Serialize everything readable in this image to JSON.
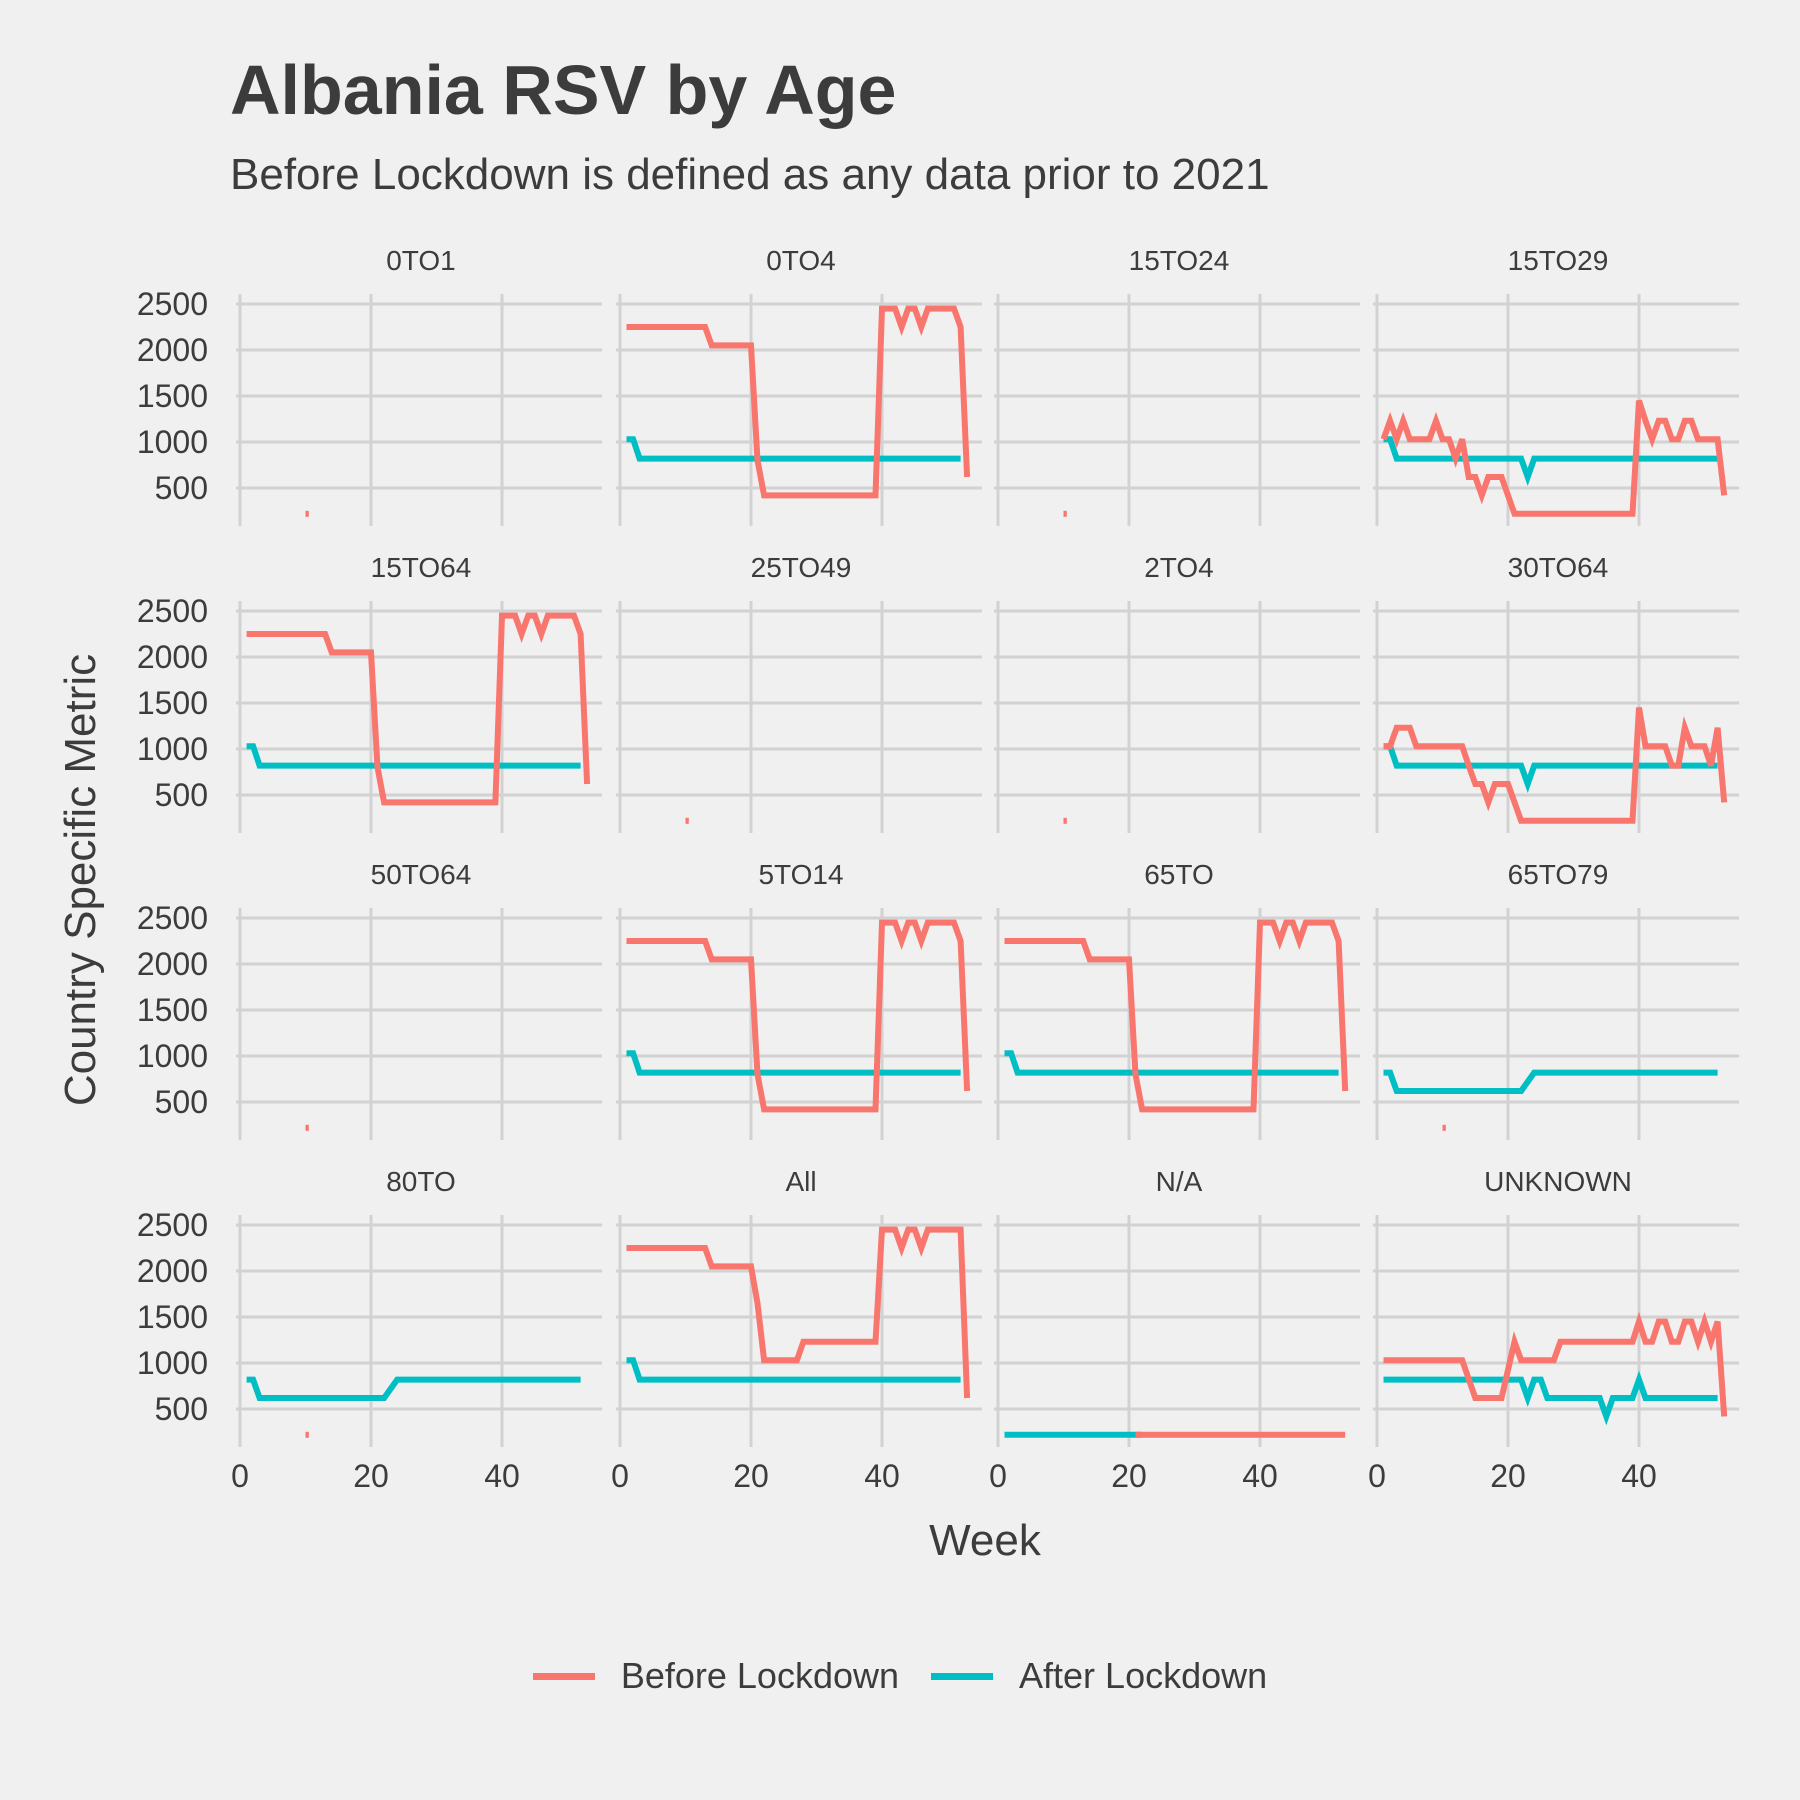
{
  "chart_data": {
    "type": "line",
    "title": "Albania RSV by Age",
    "subtitle": "Before Lockdown is defined as any data prior to 2021",
    "xlabel": "Week",
    "ylabel": "Country Specific Metric",
    "xlim": [
      0,
      54
    ],
    "ylim": [
      200,
      2550
    ],
    "xticks": [
      0,
      20,
      40
    ],
    "yticks": [
      500,
      1000,
      1500,
      2000,
      2500
    ],
    "grid": true,
    "legend_position": "bottom",
    "series_styles": [
      {
        "name": "Before Lockdown",
        "color": "#f8766d"
      },
      {
        "name": "After Lockdown",
        "color": "#00bfc4"
      }
    ],
    "panels": [
      {
        "label": "0TO1",
        "before": [
          [
            10,
            220
          ],
          [
            10.5,
            220
          ]
        ],
        "after": []
      },
      {
        "label": "0TO4",
        "before": [
          [
            1,
            2250
          ],
          [
            13,
            2250
          ],
          [
            14,
            2050
          ],
          [
            20,
            2050
          ],
          [
            21,
            800
          ],
          [
            22,
            420
          ],
          [
            39,
            420
          ],
          [
            40,
            2450
          ],
          [
            42,
            2450
          ],
          [
            43,
            2250
          ],
          [
            44,
            2450
          ],
          [
            45,
            2450
          ],
          [
            46,
            2250
          ],
          [
            47,
            2450
          ],
          [
            51,
            2450
          ],
          [
            52,
            2250
          ],
          [
            53,
            620
          ]
        ],
        "after": [
          [
            1,
            1030
          ],
          [
            2,
            1030
          ],
          [
            3,
            820
          ],
          [
            52,
            820
          ]
        ]
      },
      {
        "label": "15TO24",
        "before": [
          [
            10,
            220
          ],
          [
            10.5,
            220
          ]
        ],
        "after": []
      },
      {
        "label": "15TO29",
        "before": [
          [
            1,
            1030
          ],
          [
            2,
            1230
          ],
          [
            3,
            1030
          ],
          [
            4,
            1230
          ],
          [
            5,
            1030
          ],
          [
            8,
            1030
          ],
          [
            9,
            1230
          ],
          [
            10,
            1030
          ],
          [
            11,
            1030
          ],
          [
            12,
            820
          ],
          [
            13,
            1030
          ],
          [
            14,
            620
          ],
          [
            15,
            620
          ],
          [
            16,
            420
          ],
          [
            17,
            620
          ],
          [
            19,
            620
          ],
          [
            21,
            220
          ],
          [
            39,
            220
          ],
          [
            40,
            1450
          ],
          [
            41,
            1230
          ],
          [
            42,
            1030
          ],
          [
            43,
            1230
          ],
          [
            44,
            1230
          ],
          [
            45,
            1030
          ],
          [
            46,
            1030
          ],
          [
            47,
            1230
          ],
          [
            48,
            1230
          ],
          [
            49,
            1030
          ],
          [
            52,
            1030
          ],
          [
            53,
            420
          ]
        ],
        "after": [
          [
            1,
            1030
          ],
          [
            2,
            1030
          ],
          [
            3,
            820
          ],
          [
            22,
            820
          ],
          [
            23,
            620
          ],
          [
            24,
            820
          ],
          [
            52,
            820
          ]
        ]
      },
      {
        "label": "15TO64",
        "before": [
          [
            1,
            2250
          ],
          [
            13,
            2250
          ],
          [
            14,
            2050
          ],
          [
            20,
            2050
          ],
          [
            21,
            800
          ],
          [
            22,
            420
          ],
          [
            39,
            420
          ],
          [
            40,
            2450
          ],
          [
            42,
            2450
          ],
          [
            43,
            2250
          ],
          [
            44,
            2450
          ],
          [
            45,
            2450
          ],
          [
            46,
            2250
          ],
          [
            47,
            2450
          ],
          [
            51,
            2450
          ],
          [
            52,
            2250
          ],
          [
            53,
            620
          ]
        ],
        "after": [
          [
            1,
            1030
          ],
          [
            2,
            1030
          ],
          [
            3,
            820
          ],
          [
            52,
            820
          ]
        ]
      },
      {
        "label": "25TO49",
        "before": [
          [
            10,
            220
          ],
          [
            10.5,
            220
          ]
        ],
        "after": []
      },
      {
        "label": "2TO4",
        "before": [
          [
            10,
            220
          ],
          [
            10.5,
            220
          ]
        ],
        "after": []
      },
      {
        "label": "30TO64",
        "before": [
          [
            1,
            1030
          ],
          [
            2,
            1030
          ],
          [
            3,
            1230
          ],
          [
            5,
            1230
          ],
          [
            6,
            1030
          ],
          [
            13,
            1030
          ],
          [
            14,
            820
          ],
          [
            15,
            620
          ],
          [
            16,
            620
          ],
          [
            17,
            420
          ],
          [
            18,
            620
          ],
          [
            20,
            620
          ],
          [
            22,
            220
          ],
          [
            39,
            220
          ],
          [
            40,
            1450
          ],
          [
            41,
            1030
          ],
          [
            44,
            1030
          ],
          [
            45,
            820
          ],
          [
            46,
            820
          ],
          [
            47,
            1230
          ],
          [
            48,
            1030
          ],
          [
            50,
            1030
          ],
          [
            51,
            820
          ],
          [
            52,
            1230
          ],
          [
            53,
            420
          ]
        ],
        "after": [
          [
            1,
            1030
          ],
          [
            2,
            1030
          ],
          [
            3,
            820
          ],
          [
            22,
            820
          ],
          [
            23,
            620
          ],
          [
            24,
            820
          ],
          [
            52,
            820
          ]
        ]
      },
      {
        "label": "50TO64",
        "before": [
          [
            10,
            220
          ],
          [
            10.5,
            220
          ]
        ],
        "after": []
      },
      {
        "label": "5TO14",
        "before": [
          [
            1,
            2250
          ],
          [
            13,
            2250
          ],
          [
            14,
            2050
          ],
          [
            20,
            2050
          ],
          [
            21,
            800
          ],
          [
            22,
            420
          ],
          [
            39,
            420
          ],
          [
            40,
            2450
          ],
          [
            42,
            2450
          ],
          [
            43,
            2250
          ],
          [
            44,
            2450
          ],
          [
            45,
            2450
          ],
          [
            46,
            2250
          ],
          [
            47,
            2450
          ],
          [
            51,
            2450
          ],
          [
            52,
            2250
          ],
          [
            53,
            620
          ]
        ],
        "after": [
          [
            1,
            1030
          ],
          [
            2,
            1030
          ],
          [
            3,
            820
          ],
          [
            52,
            820
          ]
        ]
      },
      {
        "label": "65TO",
        "before": [
          [
            1,
            2250
          ],
          [
            13,
            2250
          ],
          [
            14,
            2050
          ],
          [
            20,
            2050
          ],
          [
            21,
            800
          ],
          [
            22,
            420
          ],
          [
            39,
            420
          ],
          [
            40,
            2450
          ],
          [
            42,
            2450
          ],
          [
            43,
            2250
          ],
          [
            44,
            2450
          ],
          [
            45,
            2450
          ],
          [
            46,
            2250
          ],
          [
            47,
            2450
          ],
          [
            51,
            2450
          ],
          [
            52,
            2250
          ],
          [
            53,
            620
          ]
        ],
        "after": [
          [
            1,
            1030
          ],
          [
            2,
            1030
          ],
          [
            3,
            820
          ],
          [
            52,
            820
          ]
        ]
      },
      {
        "label": "65TO79",
        "before": [
          [
            10,
            220
          ],
          [
            10.5,
            220
          ]
        ],
        "after": [
          [
            1,
            820
          ],
          [
            2,
            820
          ],
          [
            3,
            620
          ],
          [
            22,
            620
          ],
          [
            24,
            820
          ],
          [
            52,
            820
          ]
        ]
      },
      {
        "label": "80TO",
        "before": [
          [
            10,
            220
          ],
          [
            10.5,
            220
          ]
        ],
        "after": [
          [
            1,
            820
          ],
          [
            2,
            820
          ],
          [
            3,
            620
          ],
          [
            22,
            620
          ],
          [
            24,
            820
          ],
          [
            52,
            820
          ]
        ]
      },
      {
        "label": "All",
        "before": [
          [
            1,
            2250
          ],
          [
            13,
            2250
          ],
          [
            14,
            2050
          ],
          [
            20,
            2050
          ],
          [
            21,
            1650
          ],
          [
            22,
            1030
          ],
          [
            27,
            1030
          ],
          [
            28,
            1230
          ],
          [
            39,
            1230
          ],
          [
            40,
            2450
          ],
          [
            42,
            2450
          ],
          [
            43,
            2250
          ],
          [
            44,
            2450
          ],
          [
            45,
            2450
          ],
          [
            46,
            2250
          ],
          [
            47,
            2450
          ],
          [
            52,
            2450
          ],
          [
            53,
            620
          ]
        ],
        "after": [
          [
            1,
            1030
          ],
          [
            2,
            1030
          ],
          [
            3,
            820
          ],
          [
            52,
            820
          ]
        ]
      },
      {
        "label": "N/A",
        "before": [
          [
            21,
            220
          ],
          [
            53,
            220
          ]
        ],
        "after": [
          [
            1,
            220
          ],
          [
            22,
            220
          ]
        ]
      },
      {
        "label": "UNKNOWN",
        "before": [
          [
            1,
            1030
          ],
          [
            13,
            1030
          ],
          [
            15,
            620
          ],
          [
            19,
            620
          ],
          [
            21,
            1230
          ],
          [
            22,
            1030
          ],
          [
            27,
            1030
          ],
          [
            28,
            1230
          ],
          [
            39,
            1230
          ],
          [
            40,
            1450
          ],
          [
            41,
            1230
          ],
          [
            42,
            1230
          ],
          [
            43,
            1450
          ],
          [
            44,
            1450
          ],
          [
            45,
            1230
          ],
          [
            46,
            1230
          ],
          [
            47,
            1450
          ],
          [
            48,
            1450
          ],
          [
            49,
            1230
          ],
          [
            50,
            1450
          ],
          [
            51,
            1230
          ],
          [
            52,
            1450
          ],
          [
            53,
            420
          ]
        ],
        "after": [
          [
            1,
            820
          ],
          [
            22,
            820
          ],
          [
            23,
            620
          ],
          [
            24,
            820
          ],
          [
            25,
            820
          ],
          [
            26,
            620
          ],
          [
            34,
            620
          ],
          [
            35,
            420
          ],
          [
            36,
            620
          ],
          [
            39,
            620
          ],
          [
            40,
            820
          ],
          [
            41,
            620
          ],
          [
            52,
            620
          ]
        ]
      }
    ]
  }
}
